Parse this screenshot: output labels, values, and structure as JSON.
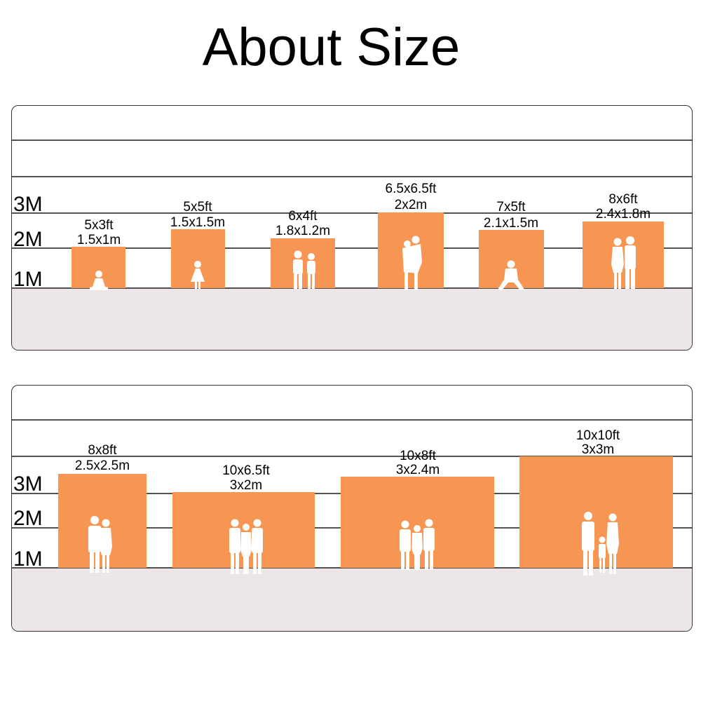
{
  "title": "About Size",
  "colors": {
    "backdrop": "#f79652",
    "floor": "#ede6e6",
    "person": "#ffffff",
    "lines": "#1a1a1a"
  },
  "scale_labels": [
    "3M",
    "2M",
    "1M"
  ],
  "rows": [
    {
      "backdrops": [
        {
          "ft": "5x3ft",
          "m": "1.5x1m",
          "people": "child-sitting"
        },
        {
          "ft": "5x5ft",
          "m": "1.5x1.5m",
          "people": "girl"
        },
        {
          "ft": "6x4ft",
          "m": "1.8x1.2m",
          "people": "two-adults"
        },
        {
          "ft": "6.5x6.5ft",
          "m": "2x2m",
          "people": "couple-embrace"
        },
        {
          "ft": "7x5ft",
          "m": "2.1x1.5m",
          "people": "crouching-man"
        },
        {
          "ft": "8x6ft",
          "m": "2.4x1.8m",
          "people": "couple"
        }
      ]
    },
    {
      "backdrops": [
        {
          "ft": "8x8ft",
          "m": "2.5x2.5m",
          "people": "couple"
        },
        {
          "ft": "10x6.5ft",
          "m": "3x2m",
          "people": "group-of-three"
        },
        {
          "ft": "10x8ft",
          "m": "3x2.4m",
          "people": "group-of-three"
        },
        {
          "ft": "10x10ft",
          "m": "3x3m",
          "people": "family"
        }
      ]
    }
  ]
}
